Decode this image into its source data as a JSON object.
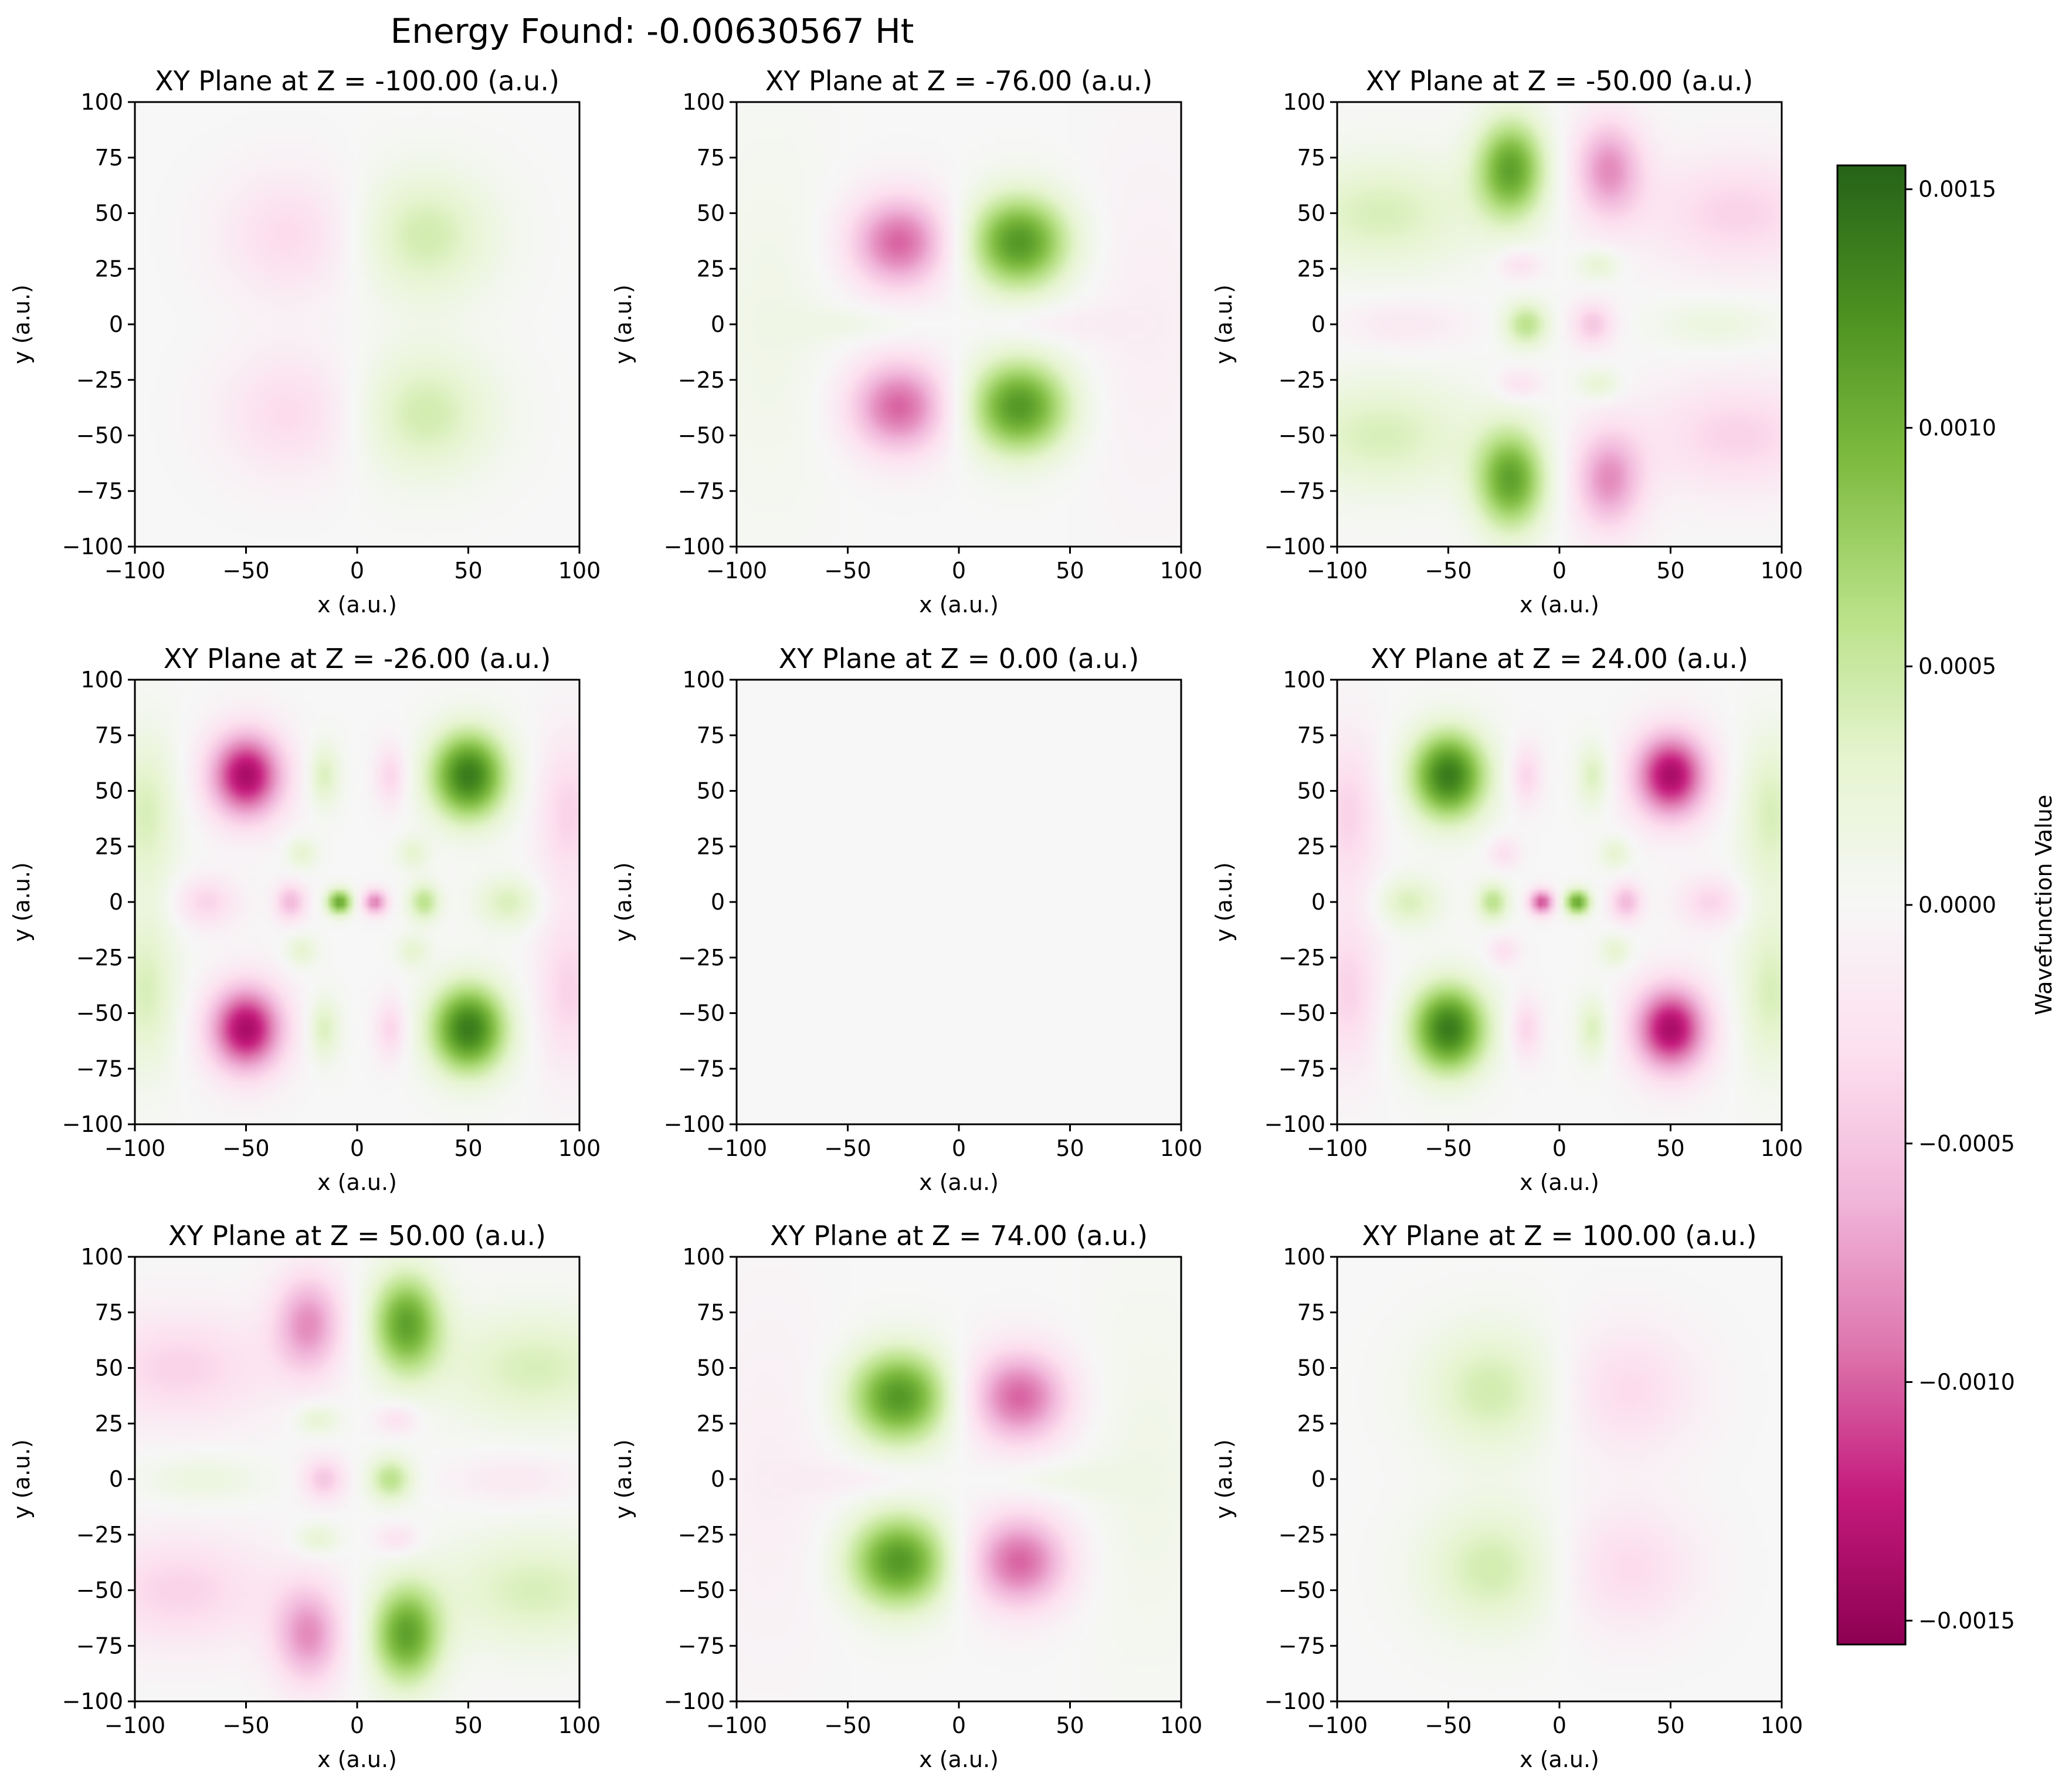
{
  "suptitle": "Energy Found: -0.00630567 Ht",
  "chart_data": {
    "type": "heatmap",
    "colormap": "PiYG",
    "x_range": [
      -100,
      100
    ],
    "y_range": [
      -100,
      100
    ],
    "xticks": [
      "−100",
      "−50",
      "0",
      "50",
      "100"
    ],
    "yticks": [
      "100",
      "75",
      "50",
      "25",
      "0",
      "−25",
      "−50",
      "−75",
      "−100"
    ],
    "xlabel": "x (a.u.)",
    "ylabel": "y (a.u.)",
    "colorbar": {
      "label": "Wavefunction Value",
      "range": [
        -0.00155,
        0.00155
      ],
      "ticks": [
        {
          "value": 0.0015,
          "label": "0.0015"
        },
        {
          "value": 0.001,
          "label": "0.0010"
        },
        {
          "value": 0.0005,
          "label": "0.0005"
        },
        {
          "value": 0.0,
          "label": "0.0000"
        },
        {
          "value": -0.0005,
          "label": "−0.0005"
        },
        {
          "value": -0.001,
          "label": "−0.0010"
        },
        {
          "value": -0.0015,
          "label": "−0.0015"
        }
      ]
    },
    "panels": [
      {
        "title": "XY Plane at Z = -100.00 (a.u.)",
        "z": -100.0,
        "blobs": [
          {
            "x": -30,
            "y": 40,
            "sx": 22,
            "sy": 20,
            "a": -0.00035
          },
          {
            "x": 30,
            "y": 40,
            "sx": 22,
            "sy": 20,
            "a": 0.00045
          },
          {
            "x": -30,
            "y": -40,
            "sx": 22,
            "sy": 20,
            "a": -0.00035
          },
          {
            "x": 30,
            "y": -40,
            "sx": 22,
            "sy": 20,
            "a": 0.00045
          }
        ]
      },
      {
        "title": "XY Plane at Z = -76.00 (a.u.)",
        "z": -76.0,
        "blobs": [
          {
            "x": -27,
            "y": 37,
            "sx": 16,
            "sy": 15,
            "a": -0.001
          },
          {
            "x": 27,
            "y": 37,
            "sx": 16,
            "sy": 15,
            "a": 0.0012
          },
          {
            "x": -27,
            "y": -37,
            "sx": 16,
            "sy": 15,
            "a": -0.001
          },
          {
            "x": 27,
            "y": -37,
            "sx": 16,
            "sy": 15,
            "a": 0.0012
          },
          {
            "x": -40,
            "y": 0,
            "sx": 22,
            "sy": 6,
            "a": 0.00015
          },
          {
            "x": 40,
            "y": 0,
            "sx": 22,
            "sy": 6,
            "a": -0.00015
          },
          {
            "x": -85,
            "y": 0,
            "sx": 20,
            "sy": 60,
            "a": 0.00012
          },
          {
            "x": 85,
            "y": 0,
            "sx": 20,
            "sy": 60,
            "a": -0.00012
          }
        ]
      },
      {
        "title": "XY Plane at Z = -50.00 (a.u.)",
        "z": -50.0,
        "blobs": [
          {
            "x": -22,
            "y": 70,
            "sx": 11,
            "sy": 16,
            "a": 0.0011
          },
          {
            "x": 22,
            "y": 70,
            "sx": 11,
            "sy": 16,
            "a": -0.0008
          },
          {
            "x": -22,
            "y": -70,
            "sx": 11,
            "sy": 16,
            "a": 0.0011
          },
          {
            "x": 22,
            "y": -70,
            "sx": 11,
            "sy": 16,
            "a": -0.0008
          },
          {
            "x": -18,
            "y": 27,
            "sx": 7,
            "sy": 5,
            "a": -0.0003
          },
          {
            "x": 18,
            "y": 27,
            "sx": 7,
            "sy": 5,
            "a": 0.0003
          },
          {
            "x": -18,
            "y": -27,
            "sx": 7,
            "sy": 5,
            "a": -0.0003
          },
          {
            "x": 18,
            "y": -27,
            "sx": 7,
            "sy": 5,
            "a": 0.0003
          },
          {
            "x": -15,
            "y": 0,
            "sx": 7,
            "sy": 7,
            "a": 0.0006
          },
          {
            "x": 15,
            "y": 0,
            "sx": 7,
            "sy": 7,
            "a": -0.0005
          },
          {
            "x": -80,
            "y": 50,
            "sx": 30,
            "sy": 18,
            "a": 0.0004
          },
          {
            "x": 80,
            "y": 50,
            "sx": 30,
            "sy": 18,
            "a": -0.0004
          },
          {
            "x": -80,
            "y": -50,
            "sx": 30,
            "sy": 18,
            "a": 0.0004
          },
          {
            "x": 80,
            "y": -50,
            "sx": 30,
            "sy": 18,
            "a": -0.0004
          },
          {
            "x": -70,
            "y": 0,
            "sx": 20,
            "sy": 8,
            "a": -0.0002
          },
          {
            "x": 70,
            "y": 0,
            "sx": 20,
            "sy": 8,
            "a": 0.0002
          }
        ]
      },
      {
        "title": "XY Plane at Z = -26.00 (a.u.)",
        "z": -26.0,
        "blobs": [
          {
            "x": -50,
            "y": 57,
            "sx": 12,
            "sy": 14,
            "a": -0.0014
          },
          {
            "x": 50,
            "y": 57,
            "sx": 12,
            "sy": 14,
            "a": 0.0014
          },
          {
            "x": -50,
            "y": -57,
            "sx": 12,
            "sy": 14,
            "a": -0.0014
          },
          {
            "x": 50,
            "y": -57,
            "sx": 12,
            "sy": 14,
            "a": 0.0014
          },
          {
            "x": -8,
            "y": 0,
            "sx": 4,
            "sy": 4,
            "a": 0.0011
          },
          {
            "x": 8,
            "y": 0,
            "sx": 4,
            "sy": 4,
            "a": -0.0009
          },
          {
            "x": -30,
            "y": 0,
            "sx": 5,
            "sy": 6,
            "a": -0.0006
          },
          {
            "x": 30,
            "y": 0,
            "sx": 5,
            "sy": 6,
            "a": 0.0006
          },
          {
            "x": -15,
            "y": 57,
            "sx": 5,
            "sy": 10,
            "a": 0.0004
          },
          {
            "x": 15,
            "y": 57,
            "sx": 5,
            "sy": 10,
            "a": -0.0004
          },
          {
            "x": -15,
            "y": -57,
            "sx": 5,
            "sy": 10,
            "a": 0.0004
          },
          {
            "x": 15,
            "y": -57,
            "sx": 5,
            "sy": 10,
            "a": -0.0004
          },
          {
            "x": -68,
            "y": 0,
            "sx": 10,
            "sy": 8,
            "a": -0.0004
          },
          {
            "x": 68,
            "y": 0,
            "sx": 10,
            "sy": 8,
            "a": 0.0004
          },
          {
            "x": -95,
            "y": 40,
            "sx": 10,
            "sy": 25,
            "a": 0.0004
          },
          {
            "x": 95,
            "y": 40,
            "sx": 10,
            "sy": 25,
            "a": -0.0004
          },
          {
            "x": -95,
            "y": -40,
            "sx": 10,
            "sy": 25,
            "a": 0.0004
          },
          {
            "x": 95,
            "y": -40,
            "sx": 10,
            "sy": 25,
            "a": -0.0004
          },
          {
            "x": -25,
            "y": 22,
            "sx": 5,
            "sy": 5,
            "a": 0.0003
          },
          {
            "x": 25,
            "y": 22,
            "sx": 5,
            "sy": 5,
            "a": 0.0003
          },
          {
            "x": -25,
            "y": -22,
            "sx": 5,
            "sy": 5,
            "a": 0.0003
          },
          {
            "x": 25,
            "y": -22,
            "sx": 5,
            "sy": 5,
            "a": 0.0003
          }
        ]
      },
      {
        "title": "XY Plane at Z = 0.00 (a.u.)",
        "z": 0.0,
        "blobs": []
      },
      {
        "title": "XY Plane at Z = 24.00 (a.u.)",
        "z": 24.0,
        "blobs": [
          {
            "x": -50,
            "y": 57,
            "sx": 12,
            "sy": 14,
            "a": 0.0014
          },
          {
            "x": 50,
            "y": 57,
            "sx": 12,
            "sy": 14,
            "a": -0.0014
          },
          {
            "x": -50,
            "y": -57,
            "sx": 12,
            "sy": 14,
            "a": 0.0014
          },
          {
            "x": 50,
            "y": -57,
            "sx": 12,
            "sy": 14,
            "a": -0.0014
          },
          {
            "x": -8,
            "y": 0,
            "sx": 4,
            "sy": 4,
            "a": -0.0011
          },
          {
            "x": 8,
            "y": 0,
            "sx": 4,
            "sy": 4,
            "a": 0.0011
          },
          {
            "x": -30,
            "y": 0,
            "sx": 5,
            "sy": 6,
            "a": 0.0006
          },
          {
            "x": 30,
            "y": 0,
            "sx": 5,
            "sy": 6,
            "a": -0.0006
          },
          {
            "x": -15,
            "y": 57,
            "sx": 5,
            "sy": 10,
            "a": -0.0004
          },
          {
            "x": 15,
            "y": 57,
            "sx": 5,
            "sy": 10,
            "a": 0.0004
          },
          {
            "x": -15,
            "y": -57,
            "sx": 5,
            "sy": 10,
            "a": -0.0004
          },
          {
            "x": 15,
            "y": -57,
            "sx": 5,
            "sy": 10,
            "a": 0.0004
          },
          {
            "x": -68,
            "y": 0,
            "sx": 10,
            "sy": 8,
            "a": 0.0004
          },
          {
            "x": 68,
            "y": 0,
            "sx": 10,
            "sy": 8,
            "a": -0.0004
          },
          {
            "x": -95,
            "y": 40,
            "sx": 10,
            "sy": 25,
            "a": -0.0004
          },
          {
            "x": 95,
            "y": 40,
            "sx": 10,
            "sy": 25,
            "a": 0.0004
          },
          {
            "x": -95,
            "y": -40,
            "sx": 10,
            "sy": 25,
            "a": -0.0004
          },
          {
            "x": 95,
            "y": -40,
            "sx": 10,
            "sy": 25,
            "a": 0.0004
          },
          {
            "x": -25,
            "y": 22,
            "sx": 5,
            "sy": 5,
            "a": -0.0003
          },
          {
            "x": 25,
            "y": 22,
            "sx": 5,
            "sy": 5,
            "a": 0.0003
          },
          {
            "x": -25,
            "y": -22,
            "sx": 5,
            "sy": 5,
            "a": -0.0003
          },
          {
            "x": 25,
            "y": -22,
            "sx": 5,
            "sy": 5,
            "a": 0.0003
          }
        ]
      },
      {
        "title": "XY Plane at Z = 50.00 (a.u.)",
        "z": 50.0,
        "blobs": [
          {
            "x": -22,
            "y": 70,
            "sx": 11,
            "sy": 16,
            "a": -0.0008
          },
          {
            "x": 22,
            "y": 70,
            "sx": 11,
            "sy": 16,
            "a": 0.0011
          },
          {
            "x": -22,
            "y": -70,
            "sx": 11,
            "sy": 16,
            "a": -0.0008
          },
          {
            "x": 22,
            "y": -70,
            "sx": 11,
            "sy": 16,
            "a": 0.0011
          },
          {
            "x": -18,
            "y": 27,
            "sx": 7,
            "sy": 5,
            "a": 0.0003
          },
          {
            "x": 18,
            "y": 27,
            "sx": 7,
            "sy": 5,
            "a": -0.0003
          },
          {
            "x": -18,
            "y": -27,
            "sx": 7,
            "sy": 5,
            "a": 0.0003
          },
          {
            "x": 18,
            "y": -27,
            "sx": 7,
            "sy": 5,
            "a": -0.0003
          },
          {
            "x": -15,
            "y": 0,
            "sx": 7,
            "sy": 7,
            "a": -0.0005
          },
          {
            "x": 15,
            "y": 0,
            "sx": 7,
            "sy": 7,
            "a": 0.0006
          },
          {
            "x": -80,
            "y": 50,
            "sx": 30,
            "sy": 18,
            "a": -0.0004
          },
          {
            "x": 80,
            "y": 50,
            "sx": 30,
            "sy": 18,
            "a": 0.0004
          },
          {
            "x": -80,
            "y": -50,
            "sx": 30,
            "sy": 18,
            "a": -0.0004
          },
          {
            "x": 80,
            "y": -50,
            "sx": 30,
            "sy": 18,
            "a": 0.0004
          },
          {
            "x": -70,
            "y": 0,
            "sx": 20,
            "sy": 8,
            "a": 0.0002
          },
          {
            "x": 70,
            "y": 0,
            "sx": 20,
            "sy": 8,
            "a": -0.0002
          }
        ]
      },
      {
        "title": "XY Plane at Z = 74.00 (a.u.)",
        "z": 74.0,
        "blobs": [
          {
            "x": -27,
            "y": 37,
            "sx": 16,
            "sy": 15,
            "a": 0.0012
          },
          {
            "x": 27,
            "y": 37,
            "sx": 16,
            "sy": 15,
            "a": -0.001
          },
          {
            "x": -27,
            "y": -37,
            "sx": 16,
            "sy": 15,
            "a": 0.0012
          },
          {
            "x": 27,
            "y": -37,
            "sx": 16,
            "sy": 15,
            "a": -0.001
          },
          {
            "x": -40,
            "y": 0,
            "sx": 22,
            "sy": 6,
            "a": -0.00015
          },
          {
            "x": 40,
            "y": 0,
            "sx": 22,
            "sy": 6,
            "a": 0.00015
          },
          {
            "x": -85,
            "y": 0,
            "sx": 20,
            "sy": 60,
            "a": -0.00012
          },
          {
            "x": 85,
            "y": 0,
            "sx": 20,
            "sy": 60,
            "a": 0.00012
          }
        ]
      },
      {
        "title": "XY Plane at Z = 100.00 (a.u.)",
        "z": 100.0,
        "blobs": [
          {
            "x": -30,
            "y": 40,
            "sx": 22,
            "sy": 20,
            "a": 0.00045
          },
          {
            "x": 30,
            "y": 40,
            "sx": 22,
            "sy": 20,
            "a": -0.00035
          },
          {
            "x": -30,
            "y": -40,
            "sx": 22,
            "sy": 20,
            "a": 0.00045
          },
          {
            "x": 30,
            "y": -40,
            "sx": 22,
            "sy": 20,
            "a": -0.00035
          }
        ]
      }
    ]
  }
}
